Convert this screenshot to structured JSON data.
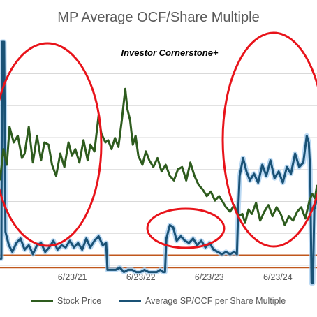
{
  "chart_data": {
    "type": "line",
    "title": "MP Average OCF/Share Multiple",
    "watermark": "Investor Cornerstone+",
    "x_tick_labels": [
      "6/23/21",
      "6/23/22",
      "6/23/23",
      "6/23/24"
    ],
    "x_tick_years": [
      2021.477,
      2022.477,
      2023.477,
      2024.477
    ],
    "xlim": [
      2020.42,
      2025.05
    ],
    "ylim": [
      0,
      100
    ],
    "grid": true,
    "legend_position": "bottom",
    "series": [
      {
        "name": "Stock Price",
        "color": "#2e5c1e",
        "points": [
          [
            2020.42,
            38
          ],
          [
            2020.47,
            52
          ],
          [
            2020.52,
            45
          ],
          [
            2020.56,
            62
          ],
          [
            2020.62,
            55
          ],
          [
            2020.68,
            58
          ],
          [
            2020.74,
            48
          ],
          [
            2020.78,
            50
          ],
          [
            2020.84,
            62
          ],
          [
            2020.9,
            46
          ],
          [
            2020.96,
            58
          ],
          [
            2021.02,
            47
          ],
          [
            2021.07,
            55
          ],
          [
            2021.13,
            54
          ],
          [
            2021.18,
            45
          ],
          [
            2021.24,
            40
          ],
          [
            2021.3,
            50
          ],
          [
            2021.36,
            44
          ],
          [
            2021.42,
            55
          ],
          [
            2021.47,
            49
          ],
          [
            2021.52,
            52
          ],
          [
            2021.58,
            46
          ],
          [
            2021.64,
            56
          ],
          [
            2021.7,
            47
          ],
          [
            2021.74,
            54
          ],
          [
            2021.8,
            51
          ],
          [
            2021.86,
            67
          ],
          [
            2021.9,
            59
          ],
          [
            2021.96,
            55
          ],
          [
            2022.0,
            56
          ],
          [
            2022.05,
            52
          ],
          [
            2022.1,
            57
          ],
          [
            2022.15,
            53
          ],
          [
            2022.2,
            65
          ],
          [
            2022.25,
            79
          ],
          [
            2022.28,
            70
          ],
          [
            2022.32,
            65
          ],
          [
            2022.36,
            54
          ],
          [
            2022.4,
            58
          ],
          [
            2022.44,
            49
          ],
          [
            2022.5,
            45
          ],
          [
            2022.55,
            51
          ],
          [
            2022.6,
            47
          ],
          [
            2022.66,
            44
          ],
          [
            2022.72,
            48
          ],
          [
            2022.78,
            42
          ],
          [
            2022.84,
            45
          ],
          [
            2022.9,
            40
          ],
          [
            2022.96,
            38
          ],
          [
            2023.02,
            43
          ],
          [
            2023.08,
            44
          ],
          [
            2023.14,
            38
          ],
          [
            2023.2,
            46
          ],
          [
            2023.26,
            40
          ],
          [
            2023.32,
            36
          ],
          [
            2023.38,
            34
          ],
          [
            2023.44,
            31
          ],
          [
            2023.5,
            33
          ],
          [
            2023.56,
            29
          ],
          [
            2023.62,
            31
          ],
          [
            2023.68,
            28
          ],
          [
            2023.72,
            26
          ],
          [
            2023.78,
            24
          ],
          [
            2023.84,
            27
          ],
          [
            2023.9,
            22
          ],
          [
            2023.96,
            23
          ],
          [
            2024.0,
            19
          ],
          [
            2024.05,
            25
          ],
          [
            2024.1,
            23
          ],
          [
            2024.16,
            28
          ],
          [
            2024.22,
            20
          ],
          [
            2024.28,
            24
          ],
          [
            2024.34,
            27
          ],
          [
            2024.4,
            22
          ],
          [
            2024.46,
            26
          ],
          [
            2024.52,
            23
          ],
          [
            2024.58,
            18
          ],
          [
            2024.64,
            22
          ],
          [
            2024.7,
            20
          ],
          [
            2024.76,
            24
          ],
          [
            2024.82,
            26
          ],
          [
            2024.88,
            21
          ],
          [
            2024.94,
            29
          ],
          [
            2024.98,
            32
          ],
          [
            2025.02,
            30
          ],
          [
            2025.05,
            36
          ]
        ]
      },
      {
        "name": "Average SP/OCF per Share Multiple",
        "color": "#1a5276",
        "points": [
          [
            2020.42,
            3
          ],
          [
            2020.44,
            3
          ],
          [
            2020.45,
            100
          ],
          [
            2020.48,
            100
          ],
          [
            2020.5,
            15
          ],
          [
            2020.55,
            9
          ],
          [
            2020.6,
            6
          ],
          [
            2020.66,
            10
          ],
          [
            2020.72,
            12
          ],
          [
            2020.78,
            7
          ],
          [
            2020.84,
            9
          ],
          [
            2020.9,
            5
          ],
          [
            2020.96,
            9
          ],
          [
            2021.02,
            10
          ],
          [
            2021.08,
            6
          ],
          [
            2021.14,
            8
          ],
          [
            2021.2,
            11
          ],
          [
            2021.26,
            7
          ],
          [
            2021.32,
            9
          ],
          [
            2021.38,
            8
          ],
          [
            2021.44,
            11
          ],
          [
            2021.5,
            8
          ],
          [
            2021.56,
            10
          ],
          [
            2021.62,
            7
          ],
          [
            2021.68,
            12
          ],
          [
            2021.74,
            8
          ],
          [
            2021.8,
            11
          ],
          [
            2021.86,
            13
          ],
          [
            2021.92,
            9
          ],
          [
            2021.97,
            10
          ],
          [
            2021.99,
            -2
          ],
          [
            2022.05,
            -2
          ],
          [
            2022.11,
            -2
          ],
          [
            2022.17,
            -1
          ],
          [
            2022.23,
            -3
          ],
          [
            2022.29,
            -2
          ],
          [
            2022.35,
            -2
          ],
          [
            2022.41,
            -3
          ],
          [
            2022.47,
            -3
          ],
          [
            2022.53,
            -2
          ],
          [
            2022.59,
            -3
          ],
          [
            2022.65,
            -3
          ],
          [
            2022.71,
            -3
          ],
          [
            2022.76,
            -2
          ],
          [
            2022.8,
            -3
          ],
          [
            2022.83,
            -3
          ],
          [
            2022.85,
            12
          ],
          [
            2022.9,
            18
          ],
          [
            2022.95,
            17
          ],
          [
            2023.0,
            11
          ],
          [
            2023.06,
            13
          ],
          [
            2023.12,
            11
          ],
          [
            2023.18,
            10
          ],
          [
            2023.24,
            12
          ],
          [
            2023.3,
            9
          ],
          [
            2023.36,
            11
          ],
          [
            2023.42,
            8
          ],
          [
            2023.48,
            10
          ],
          [
            2023.54,
            7
          ],
          [
            2023.6,
            6
          ],
          [
            2023.66,
            5
          ],
          [
            2023.72,
            6
          ],
          [
            2023.78,
            5
          ],
          [
            2023.84,
            6
          ],
          [
            2023.88,
            5
          ],
          [
            2023.9,
            25
          ],
          [
            2023.92,
            40
          ],
          [
            2023.97,
            48
          ],
          [
            2024.02,
            42
          ],
          [
            2024.07,
            38
          ],
          [
            2024.13,
            41
          ],
          [
            2024.19,
            37
          ],
          [
            2024.25,
            45
          ],
          [
            2024.31,
            40
          ],
          [
            2024.37,
            47
          ],
          [
            2024.43,
            39
          ],
          [
            2024.49,
            42
          ],
          [
            2024.55,
            37
          ],
          [
            2024.61,
            44
          ],
          [
            2024.67,
            41
          ],
          [
            2024.73,
            50
          ],
          [
            2024.79,
            44
          ],
          [
            2024.85,
            46
          ],
          [
            2024.9,
            58
          ],
          [
            2024.93,
            55
          ],
          [
            2024.95,
            43
          ],
          [
            2024.97,
            -8
          ],
          [
            2024.99,
            -8
          ],
          [
            2025.01,
            25
          ],
          [
            2025.05,
            30
          ]
        ]
      }
    ],
    "reference_lines": [
      {
        "y": 4.5,
        "color": "#c0571c"
      },
      {
        "y": -1,
        "color": "#c0571c"
      }
    ],
    "ellipses_color": "#e8131a"
  }
}
